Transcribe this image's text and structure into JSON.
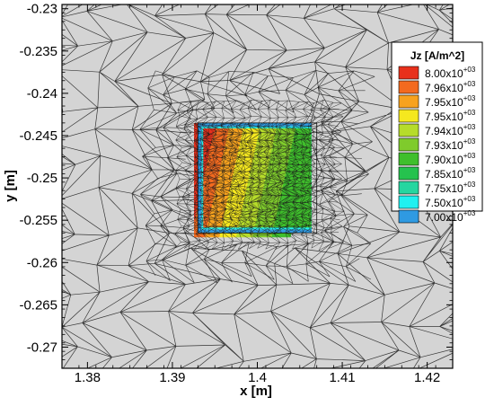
{
  "chart_data": {
    "type": "heatmap",
    "title": "",
    "xlabel": "x [m]",
    "ylabel": "y [m]",
    "xlim": [
      1.377,
      1.423
    ],
    "ylim": [
      -0.2725,
      -0.2295
    ],
    "x_ticks": [
      1.38,
      1.39,
      1.4,
      1.41,
      1.42
    ],
    "y_ticks": [
      -0.23,
      -0.235,
      -0.24,
      -0.245,
      -0.25,
      -0.255,
      -0.26,
      -0.265,
      -0.27
    ],
    "x_tick_labels": [
      "1.38",
      "1.39",
      "1.4",
      "1.41",
      "1.42"
    ],
    "y_tick_labels": [
      "-0.23",
      "-0.235",
      "-0.24",
      "-0.245",
      "-0.25",
      "-0.255",
      "-0.26",
      "-0.265",
      "-0.27"
    ],
    "conductor_region": {
      "x": [
        1.393,
        1.407
      ],
      "y": [
        -0.2565,
        -0.2435
      ]
    },
    "background_color": "#d4d4d4",
    "mesh_color": "#1a1a1a",
    "legend": {
      "title": "Jz [A/m^2]",
      "placement": "right",
      "levels": [
        {
          "mantissa": "8.00x10",
          "exponent": "+03",
          "value": 8000,
          "color": "#e8301c"
        },
        {
          "mantissa": "7.96x10",
          "exponent": "+03",
          "value": 7960,
          "color": "#f36a1f"
        },
        {
          "mantissa": "7.95x10",
          "exponent": "+03",
          "value": 7950,
          "color": "#f7a21e"
        },
        {
          "mantissa": "7.95x10",
          "exponent": "+03",
          "value": 7950,
          "color": "#f5e81f"
        },
        {
          "mantissa": "7.94x10",
          "exponent": "+03",
          "value": 7940,
          "color": "#b6dc2a"
        },
        {
          "mantissa": "7.93x10",
          "exponent": "+03",
          "value": 7930,
          "color": "#7fcb2c"
        },
        {
          "mantissa": "7.90x10",
          "exponent": "+03",
          "value": 7900,
          "color": "#3fbf2c"
        },
        {
          "mantissa": "7.85x10",
          "exponent": "+03",
          "value": 7850,
          "color": "#25c24e"
        },
        {
          "mantissa": "7.75x10",
          "exponent": "+03",
          "value": 7750,
          "color": "#26d6a0"
        },
        {
          "mantissa": "7.50x10",
          "exponent": "+03",
          "value": 7500,
          "color": "#20f0f0"
        },
        {
          "mantissa": "7.00x10",
          "exponent": "+03",
          "value": 7000,
          "color": "#2f9ae2"
        }
      ]
    }
  }
}
